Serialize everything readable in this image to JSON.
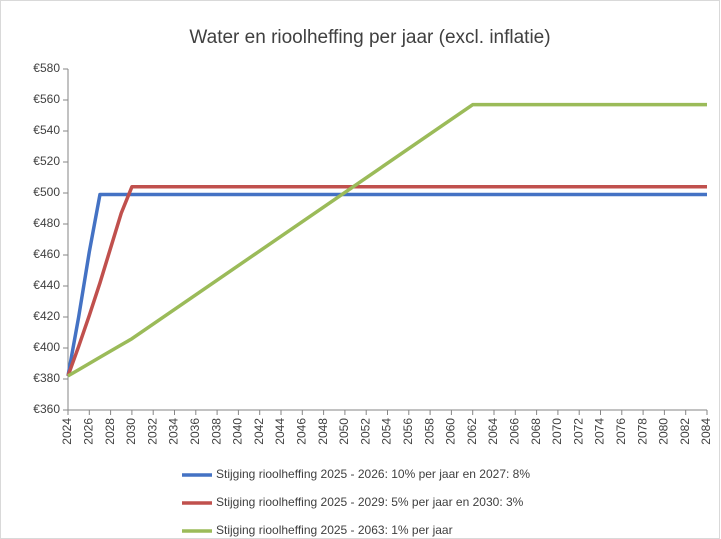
{
  "chart_data": {
    "type": "line",
    "title": "Water en rioolheffing per jaar (excl. inflatie)",
    "x": [
      2024,
      2025,
      2026,
      2027,
      2029,
      2030,
      2062,
      2084
    ],
    "series": [
      {
        "name": "Stijging rioolheffing 2025 - 2026: 10% per jaar en 2027: 8%",
        "color": "#4472c4",
        "values": [
          382,
          420,
          462,
          499,
          499,
          499,
          499,
          499
        ]
      },
      {
        "name": "Stijging rioolheffing 2025 - 2029: 5% per jaar en 2030: 3%",
        "color": "#c0504d",
        "values": [
          382,
          401,
          421,
          442,
          487,
          504,
          504,
          504
        ]
      },
      {
        "name": "Stijging rioolheffing 2025 - 2063: 1% per jaar",
        "color": "#9bbb59",
        "values": [
          382,
          386,
          390,
          394,
          402,
          406,
          557,
          557
        ]
      }
    ],
    "xlim": [
      2024,
      2084
    ],
    "xticks": [
      2024,
      2026,
      2028,
      2030,
      2032,
      2034,
      2036,
      2038,
      2040,
      2042,
      2044,
      2046,
      2048,
      2050,
      2052,
      2054,
      2056,
      2058,
      2060,
      2062,
      2064,
      2066,
      2068,
      2070,
      2072,
      2074,
      2076,
      2078,
      2080,
      2082,
      2084
    ],
    "ylim": [
      360,
      580
    ],
    "yticks": [
      {
        "value": 360,
        "label": "€360"
      },
      {
        "value": 380,
        "label": "€380"
      },
      {
        "value": 400,
        "label": "€400"
      },
      {
        "value": 420,
        "label": "€420"
      },
      {
        "value": 440,
        "label": "€440"
      },
      {
        "value": 460,
        "label": "€460"
      },
      {
        "value": 480,
        "label": "€480"
      },
      {
        "value": 500,
        "label": "€500"
      },
      {
        "value": 520,
        "label": "€520"
      },
      {
        "value": 540,
        "label": "€540"
      },
      {
        "value": 560,
        "label": "€560"
      },
      {
        "value": 580,
        "label": "€580"
      }
    ],
    "grid": false,
    "legend": "bottom"
  }
}
